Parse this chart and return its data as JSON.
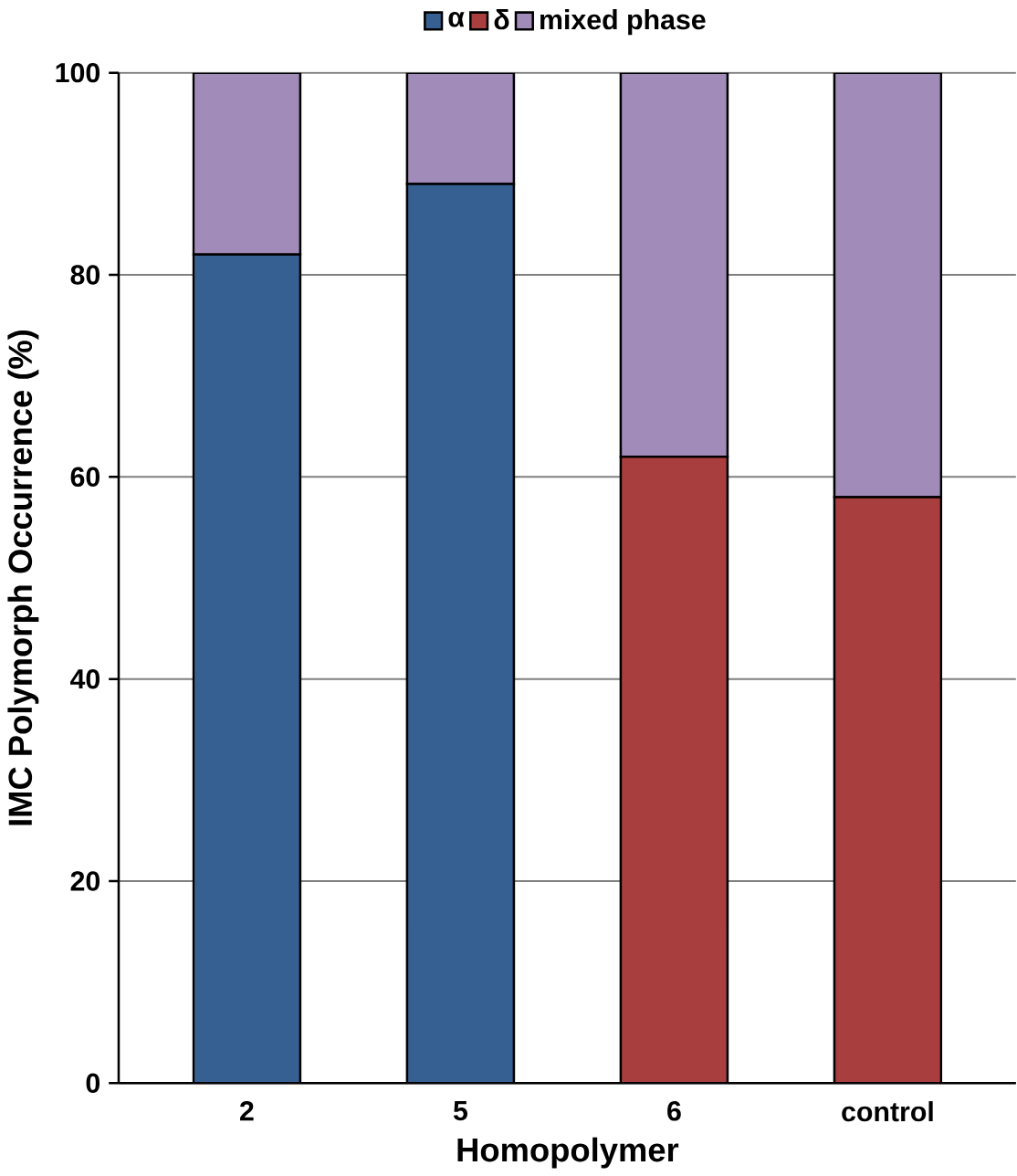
{
  "chart_data": {
    "type": "bar",
    "stacked": true,
    "xlabel": "Homopolymer",
    "ylabel": "IMC Polymorph Occurrence (%)",
    "categories": [
      "2",
      "5",
      "6",
      "control"
    ],
    "series": [
      {
        "name": "α",
        "color": "#376092",
        "values": [
          82,
          89,
          0,
          0
        ]
      },
      {
        "name": "δ",
        "color": "#a83e3e",
        "values": [
          0,
          0,
          62,
          58
        ]
      },
      {
        "name": "mixed phase",
        "color": "#a18bb9",
        "values": [
          18,
          11,
          38,
          42
        ]
      }
    ],
    "ylim": [
      0,
      100
    ],
    "yticks": [
      0,
      20,
      40,
      60,
      80,
      100
    ],
    "grid": "y",
    "legend": "top"
  }
}
